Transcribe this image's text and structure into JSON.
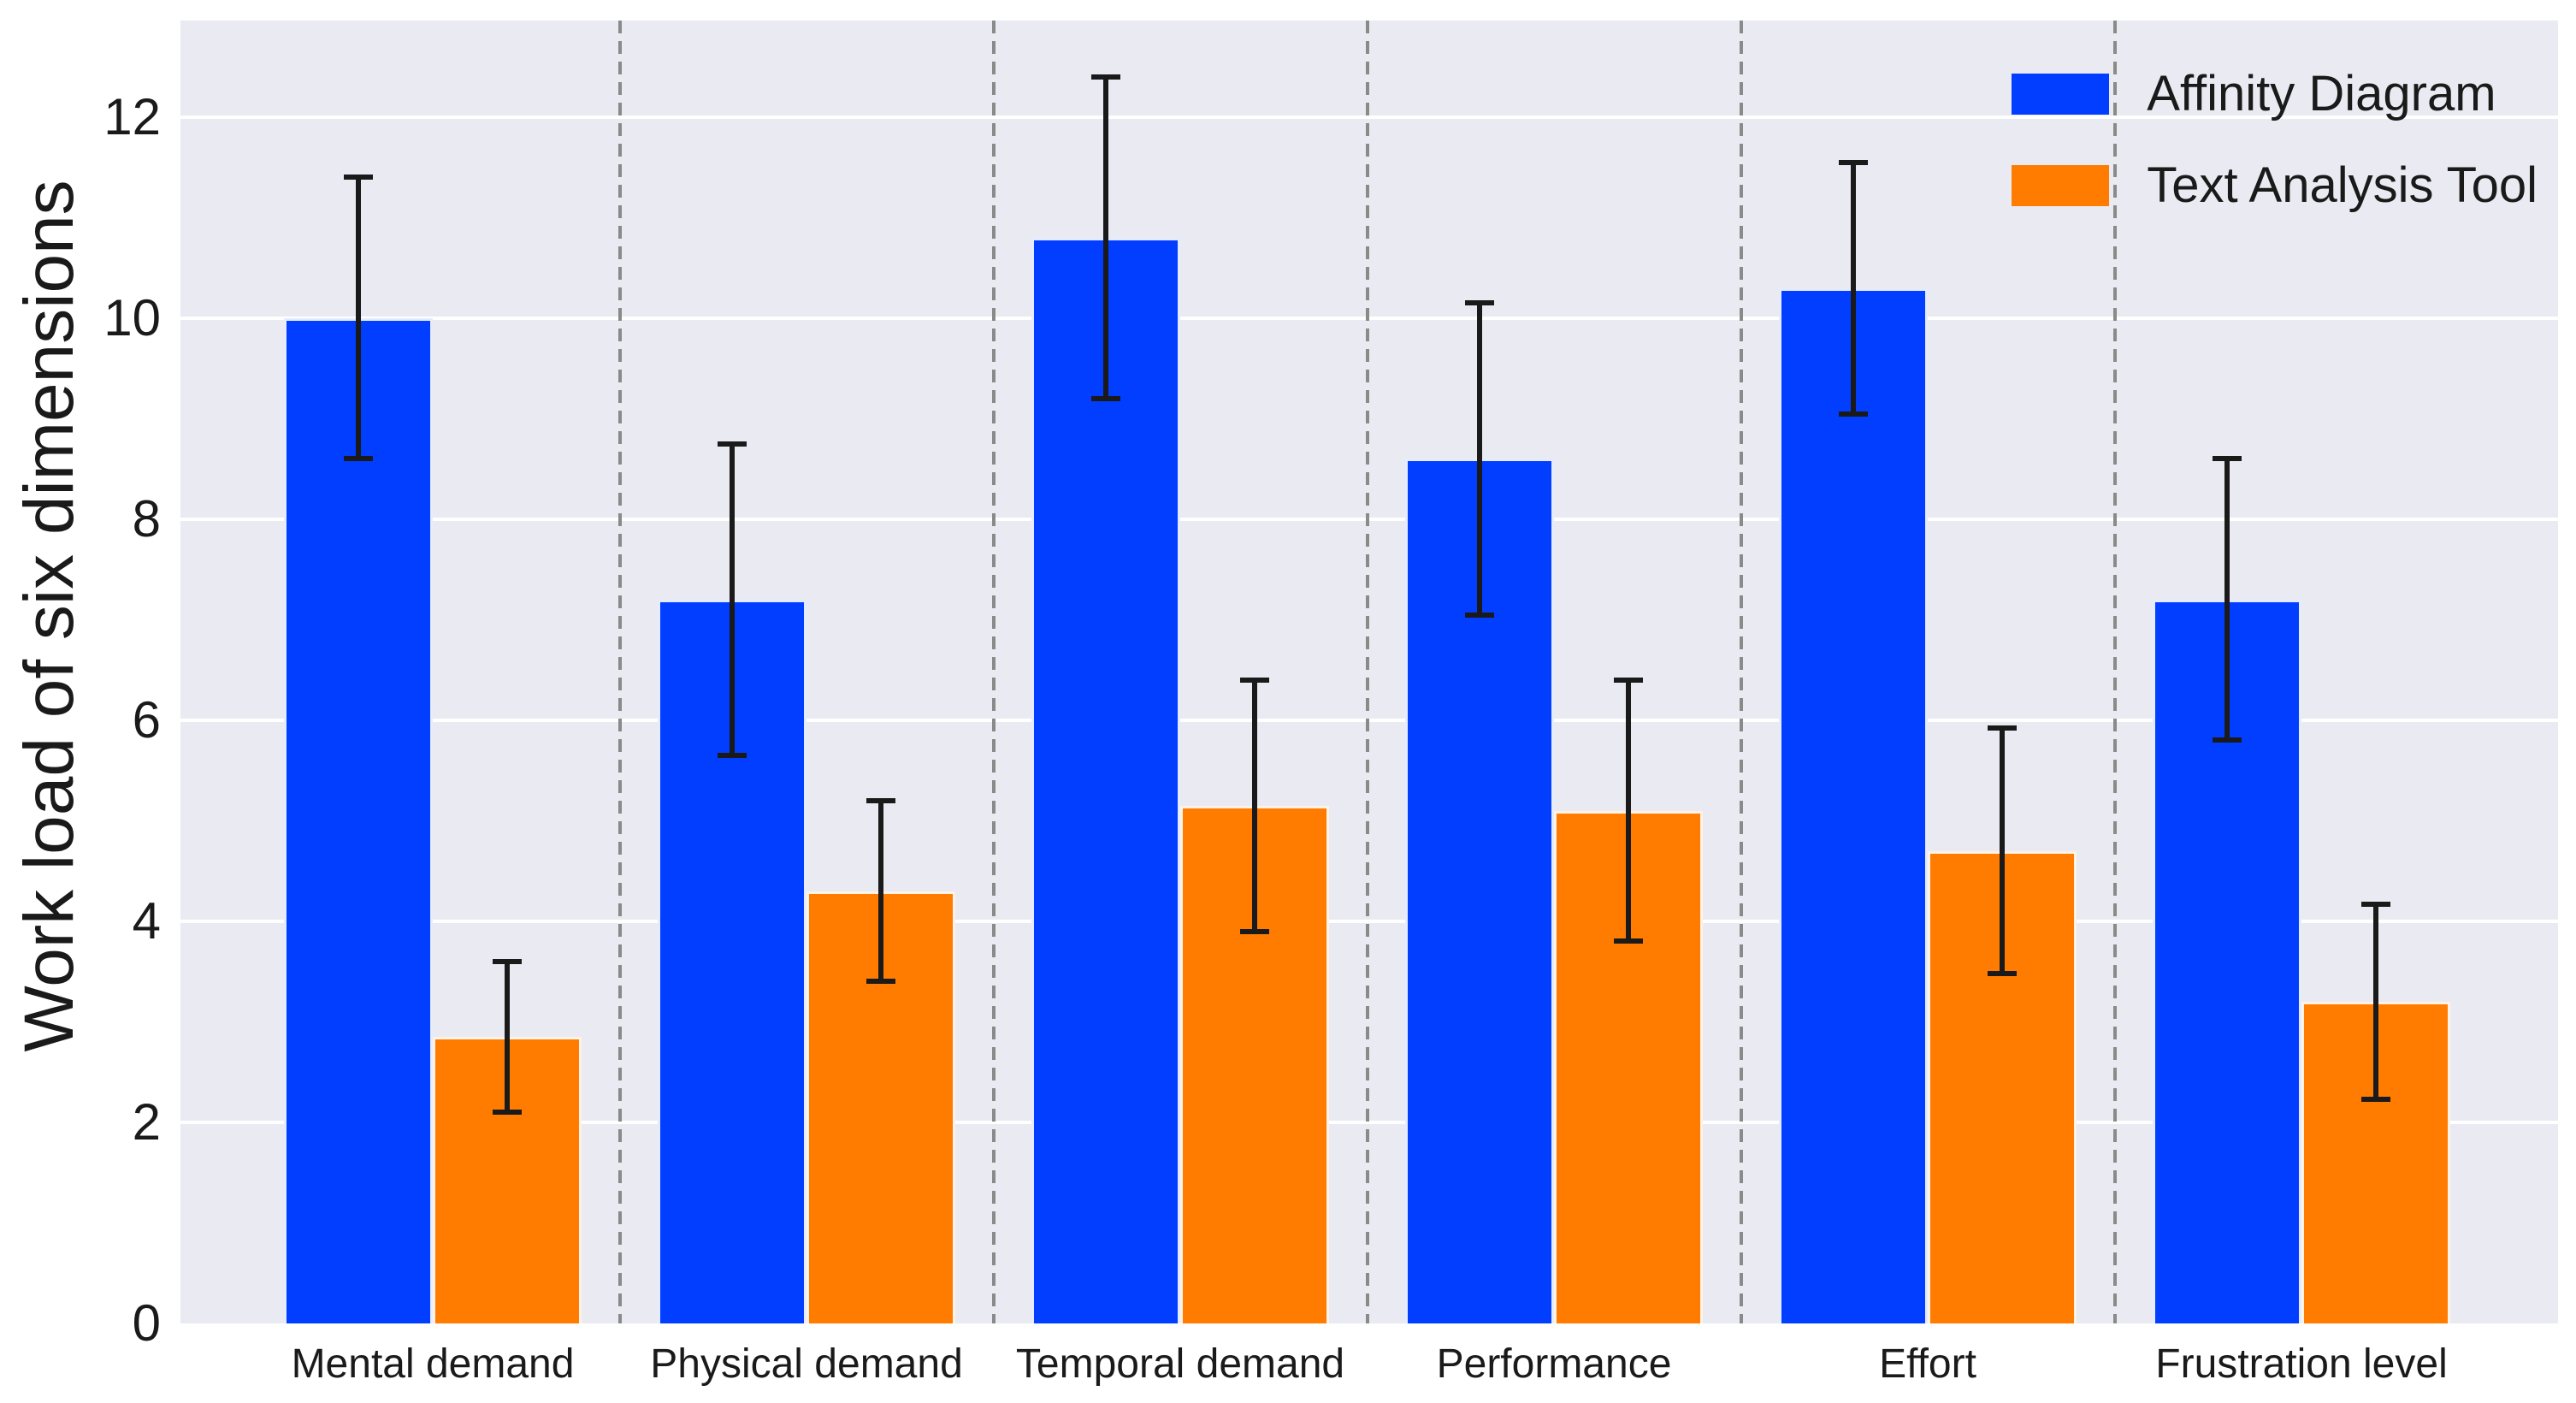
{
  "chart_data": {
    "type": "bar",
    "title": "",
    "xlabel": "",
    "ylabel": "Work load of six dimensions",
    "categories": [
      "Mental demand",
      "Physical demand",
      "Temporal demand",
      "Performance",
      "Effort",
      "Frustration level"
    ],
    "series": [
      {
        "name": "Affinity Diagram",
        "color": "#023EFF",
        "values": [
          10.0,
          7.2,
          10.8,
          8.6,
          10.3,
          7.2
        ],
        "errors": [
          1.4,
          1.55,
          1.6,
          1.55,
          1.25,
          1.4
        ]
      },
      {
        "name": "Text Analysis Tool",
        "color": "#FF7C00",
        "values": [
          2.85,
          4.3,
          5.15,
          5.1,
          4.7,
          3.2
        ],
        "errors": [
          0.75,
          0.9,
          1.25,
          1.3,
          1.22,
          0.97
        ]
      }
    ],
    "ylim": [
      0,
      12.96
    ],
    "yticks": [
      0,
      2,
      4,
      6,
      8,
      10,
      12
    ],
    "grid": "horizontal-white-gridlines",
    "group_separators": "vertical-dashed-gray",
    "legend_position": "upper-right",
    "error_bars": "symmetric-with-caps"
  },
  "style": {
    "plot_background": "#eaeaf2",
    "page_background": "#ffffff",
    "grid_color": "#ffffff",
    "error_bar_color": "#1a1a1a",
    "separator_color": "#8a8a8a",
    "text_color": "#1a1a1a"
  }
}
